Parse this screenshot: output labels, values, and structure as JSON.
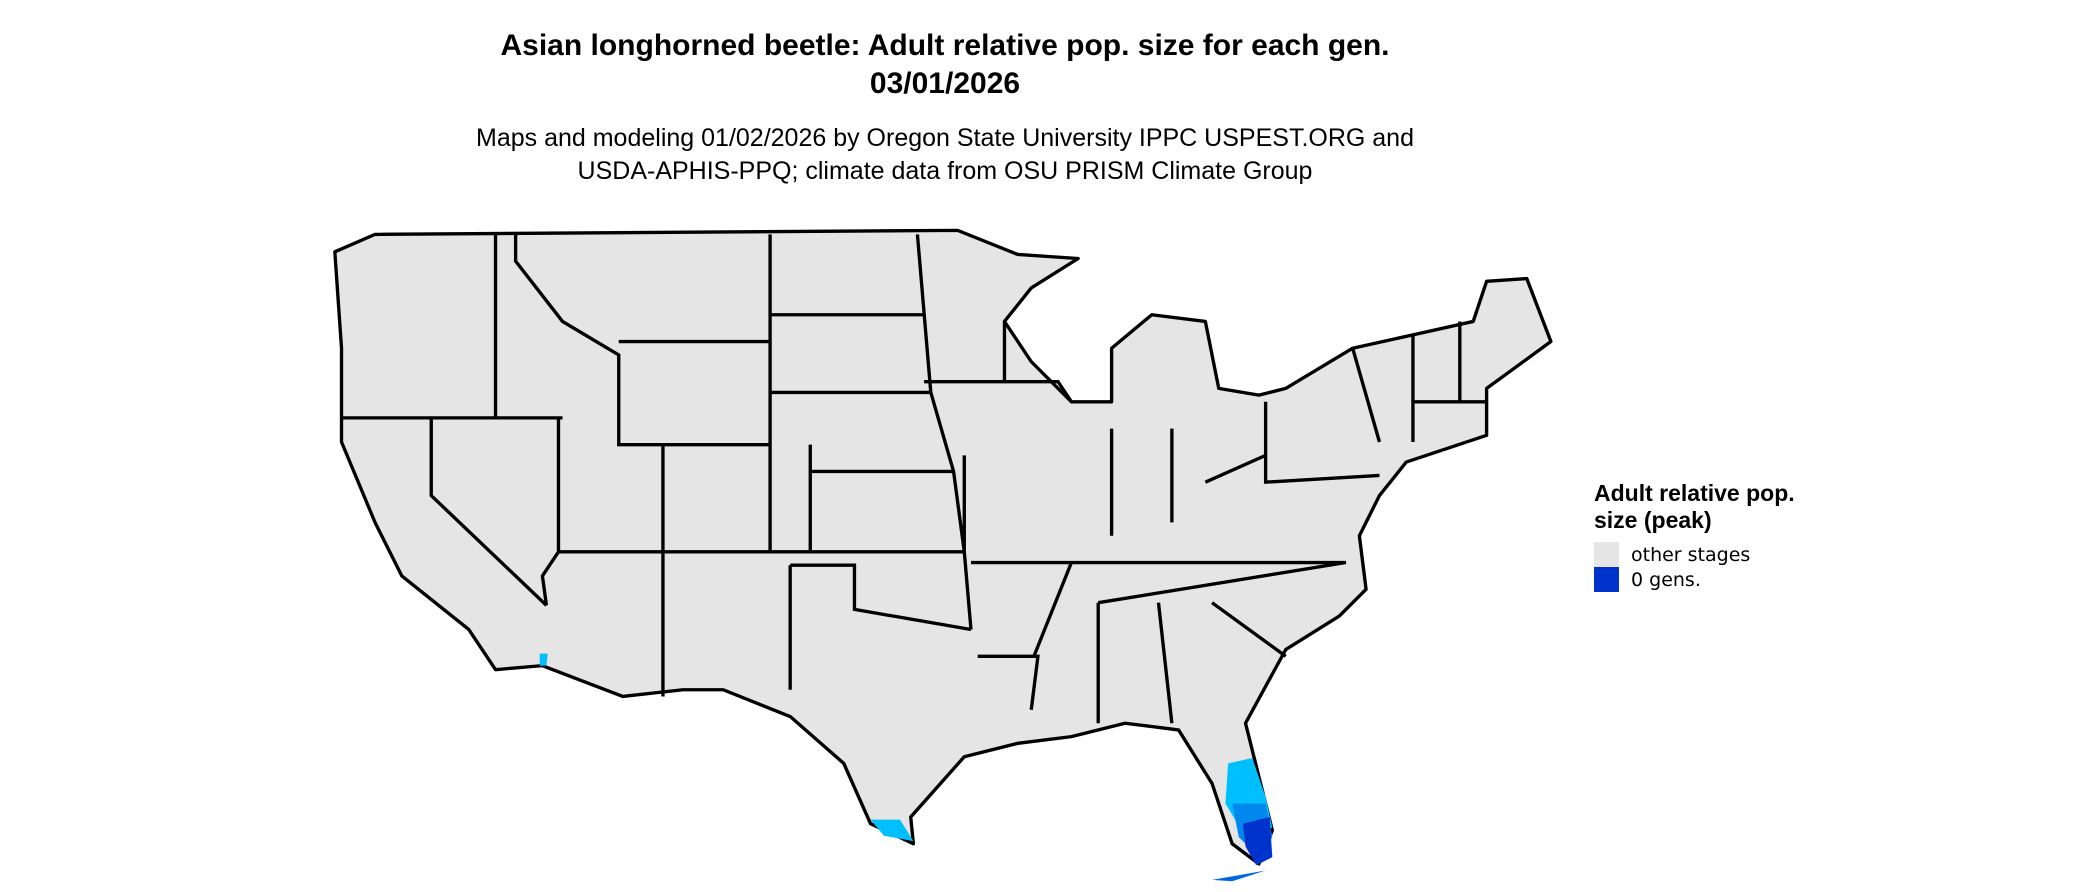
{
  "title_line1": "Asian longhorned beetle: Adult relative pop. size for each gen.",
  "title_line2": "03/01/2026",
  "subtitle_line1": "Maps and modeling 01/02/2026 by Oregon State University IPPC USPEST.ORG and",
  "subtitle_line2": "USDA-APHIS-PPQ; climate data from OSU PRISM Climate Group",
  "legend": {
    "title": "Adult relative pop. size (peak)",
    "items": [
      {
        "label": "other stages",
        "color": "#e5e5e5"
      },
      {
        "label": "0 gens.",
        "color": "#0033cc"
      }
    ]
  },
  "colors": {
    "land": "#e5e5e5",
    "border": "#000000",
    "light_blue": "#00bfff",
    "mid_blue": "#0088ee",
    "dark_blue": "#0033cc"
  }
}
